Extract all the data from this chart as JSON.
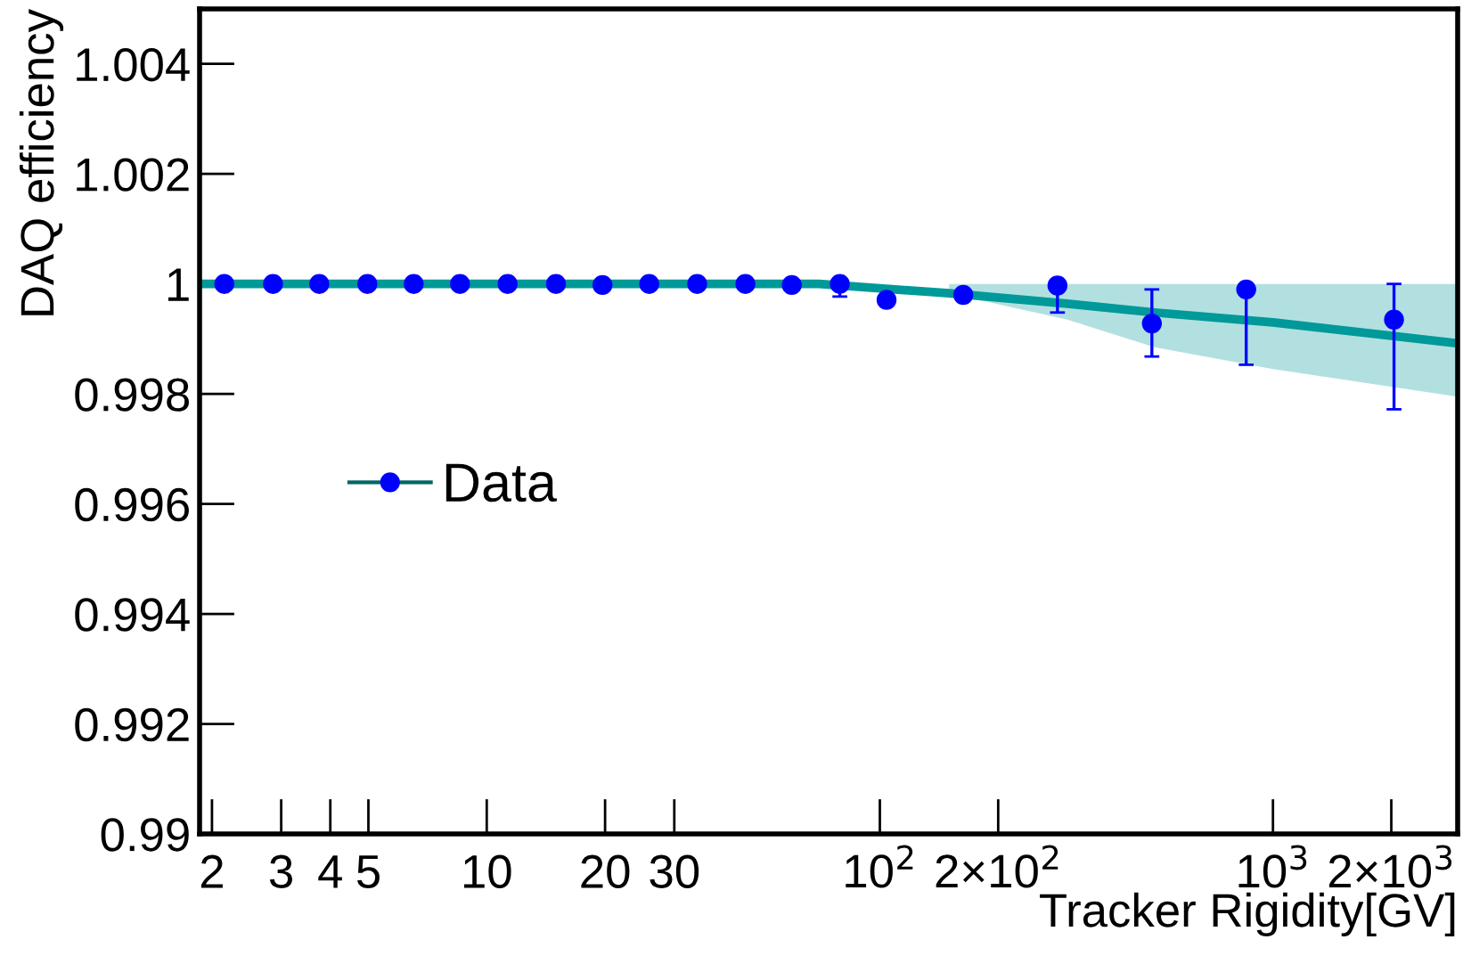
{
  "chart_data": {
    "type": "scatter",
    "xlabel": "Tracker Rigidity[GV]",
    "ylabel": "DAQ efficiency",
    "log": "x",
    "xlim": [
      1.86,
      2950
    ],
    "ylim": [
      0.99,
      1.005
    ],
    "xticks": [
      2,
      3,
      4,
      5,
      10,
      20,
      30,
      {
        "value": 100,
        "label": "10$^{2}$"
      },
      {
        "value": 200,
        "label": "2×10$^{2}$"
      },
      {
        "value": 1000,
        "label": "10$^{3}$"
      },
      {
        "value": 2000,
        "label": "2×10$^{3}$"
      }
    ],
    "yticks": [
      {
        "value": 0.99,
        "label": "0.99"
      },
      0.992,
      0.994,
      0.996,
      0.998,
      {
        "value": 1,
        "label": "1"
      },
      1.002,
      1.004
    ],
    "grid": false,
    "legend": "left",
    "marker": "circle",
    "series": [
      {
        "name": "Data",
        "color": "#0000ff",
        "x": [
          2.15,
          2.86,
          3.75,
          4.97,
          6.52,
          8.55,
          11.3,
          15.0,
          19.7,
          25.9,
          34.3,
          45.5,
          59.7,
          79.1,
          104,
          163,
          283,
          492,
          855,
          2032
        ],
        "values": [
          1.0,
          1.0,
          1.0,
          1.0,
          1.0,
          1.0,
          1.0,
          1.0,
          0.99998,
          1.0,
          1.0,
          1.0,
          0.99998,
          1.0,
          0.99971,
          0.9998,
          0.99997,
          0.99928,
          0.9999,
          0.99935
        ],
        "errors": [
          null,
          null,
          null,
          null,
          null,
          null,
          null,
          null,
          null,
          null,
          null,
          null,
          null,
          [
            0.99977,
            1.0
          ],
          null,
          null,
          [
            0.99948,
            0.99997
          ],
          [
            0.99868,
            0.9999
          ],
          [
            0.99853,
            0.9999
          ],
          [
            0.99772,
            1.0
          ]
        ]
      },
      {
        "type": "line",
        "color": "#009999",
        "line_style": "solid",
        "marker": "none",
        "x": [
          1.86,
          70,
          150,
          300,
          500,
          1000,
          2950
        ],
        "values": [
          1.0,
          1.0,
          0.99983,
          0.99964,
          0.99948,
          0.9993,
          0.99892
        ],
        "lower": [
          null,
          null,
          0.99983,
          0.99935,
          0.99885,
          0.99845,
          0.99795
        ],
        "upper": [
          null,
          null,
          1.0,
          1.0,
          1.0,
          1.0,
          1.0
        ]
      }
    ]
  }
}
